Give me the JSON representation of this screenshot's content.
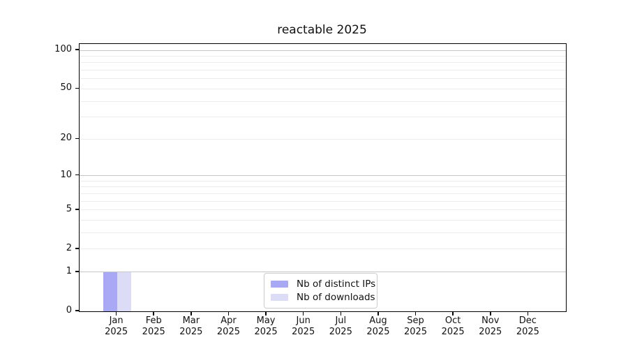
{
  "title": "reactable 2025",
  "chart_data": {
    "type": "bar",
    "title": "reactable 2025",
    "categories": [
      "Jan",
      "Feb",
      "Mar",
      "Apr",
      "May",
      "Jun",
      "Jul",
      "Aug",
      "Sep",
      "Oct",
      "Nov",
      "Dec"
    ],
    "x_year_label": "2025",
    "series": [
      {
        "name": "Nb of distinct IPs",
        "color": "#a8a8f5",
        "values": [
          1,
          0,
          0,
          0,
          0,
          0,
          0,
          0,
          0,
          0,
          0,
          0
        ]
      },
      {
        "name": "Nb of downloads",
        "color": "#dcdcf6",
        "values": [
          1,
          0,
          0,
          0,
          0,
          0,
          0,
          0,
          0,
          0,
          0,
          0
        ]
      }
    ],
    "y_axis": {
      "scale": "log1p",
      "ticks": [
        0,
        1,
        2,
        5,
        10,
        20,
        50,
        100
      ],
      "ylim": [
        0,
        100
      ],
      "major_gridlines": [
        1,
        10,
        100
      ],
      "minor_gridlines": [
        2,
        3,
        4,
        5,
        6,
        7,
        8,
        9,
        20,
        30,
        40,
        50,
        60,
        70,
        80,
        90
      ]
    },
    "grid": "horizontal",
    "legend_position": "inside-bottom-center"
  }
}
